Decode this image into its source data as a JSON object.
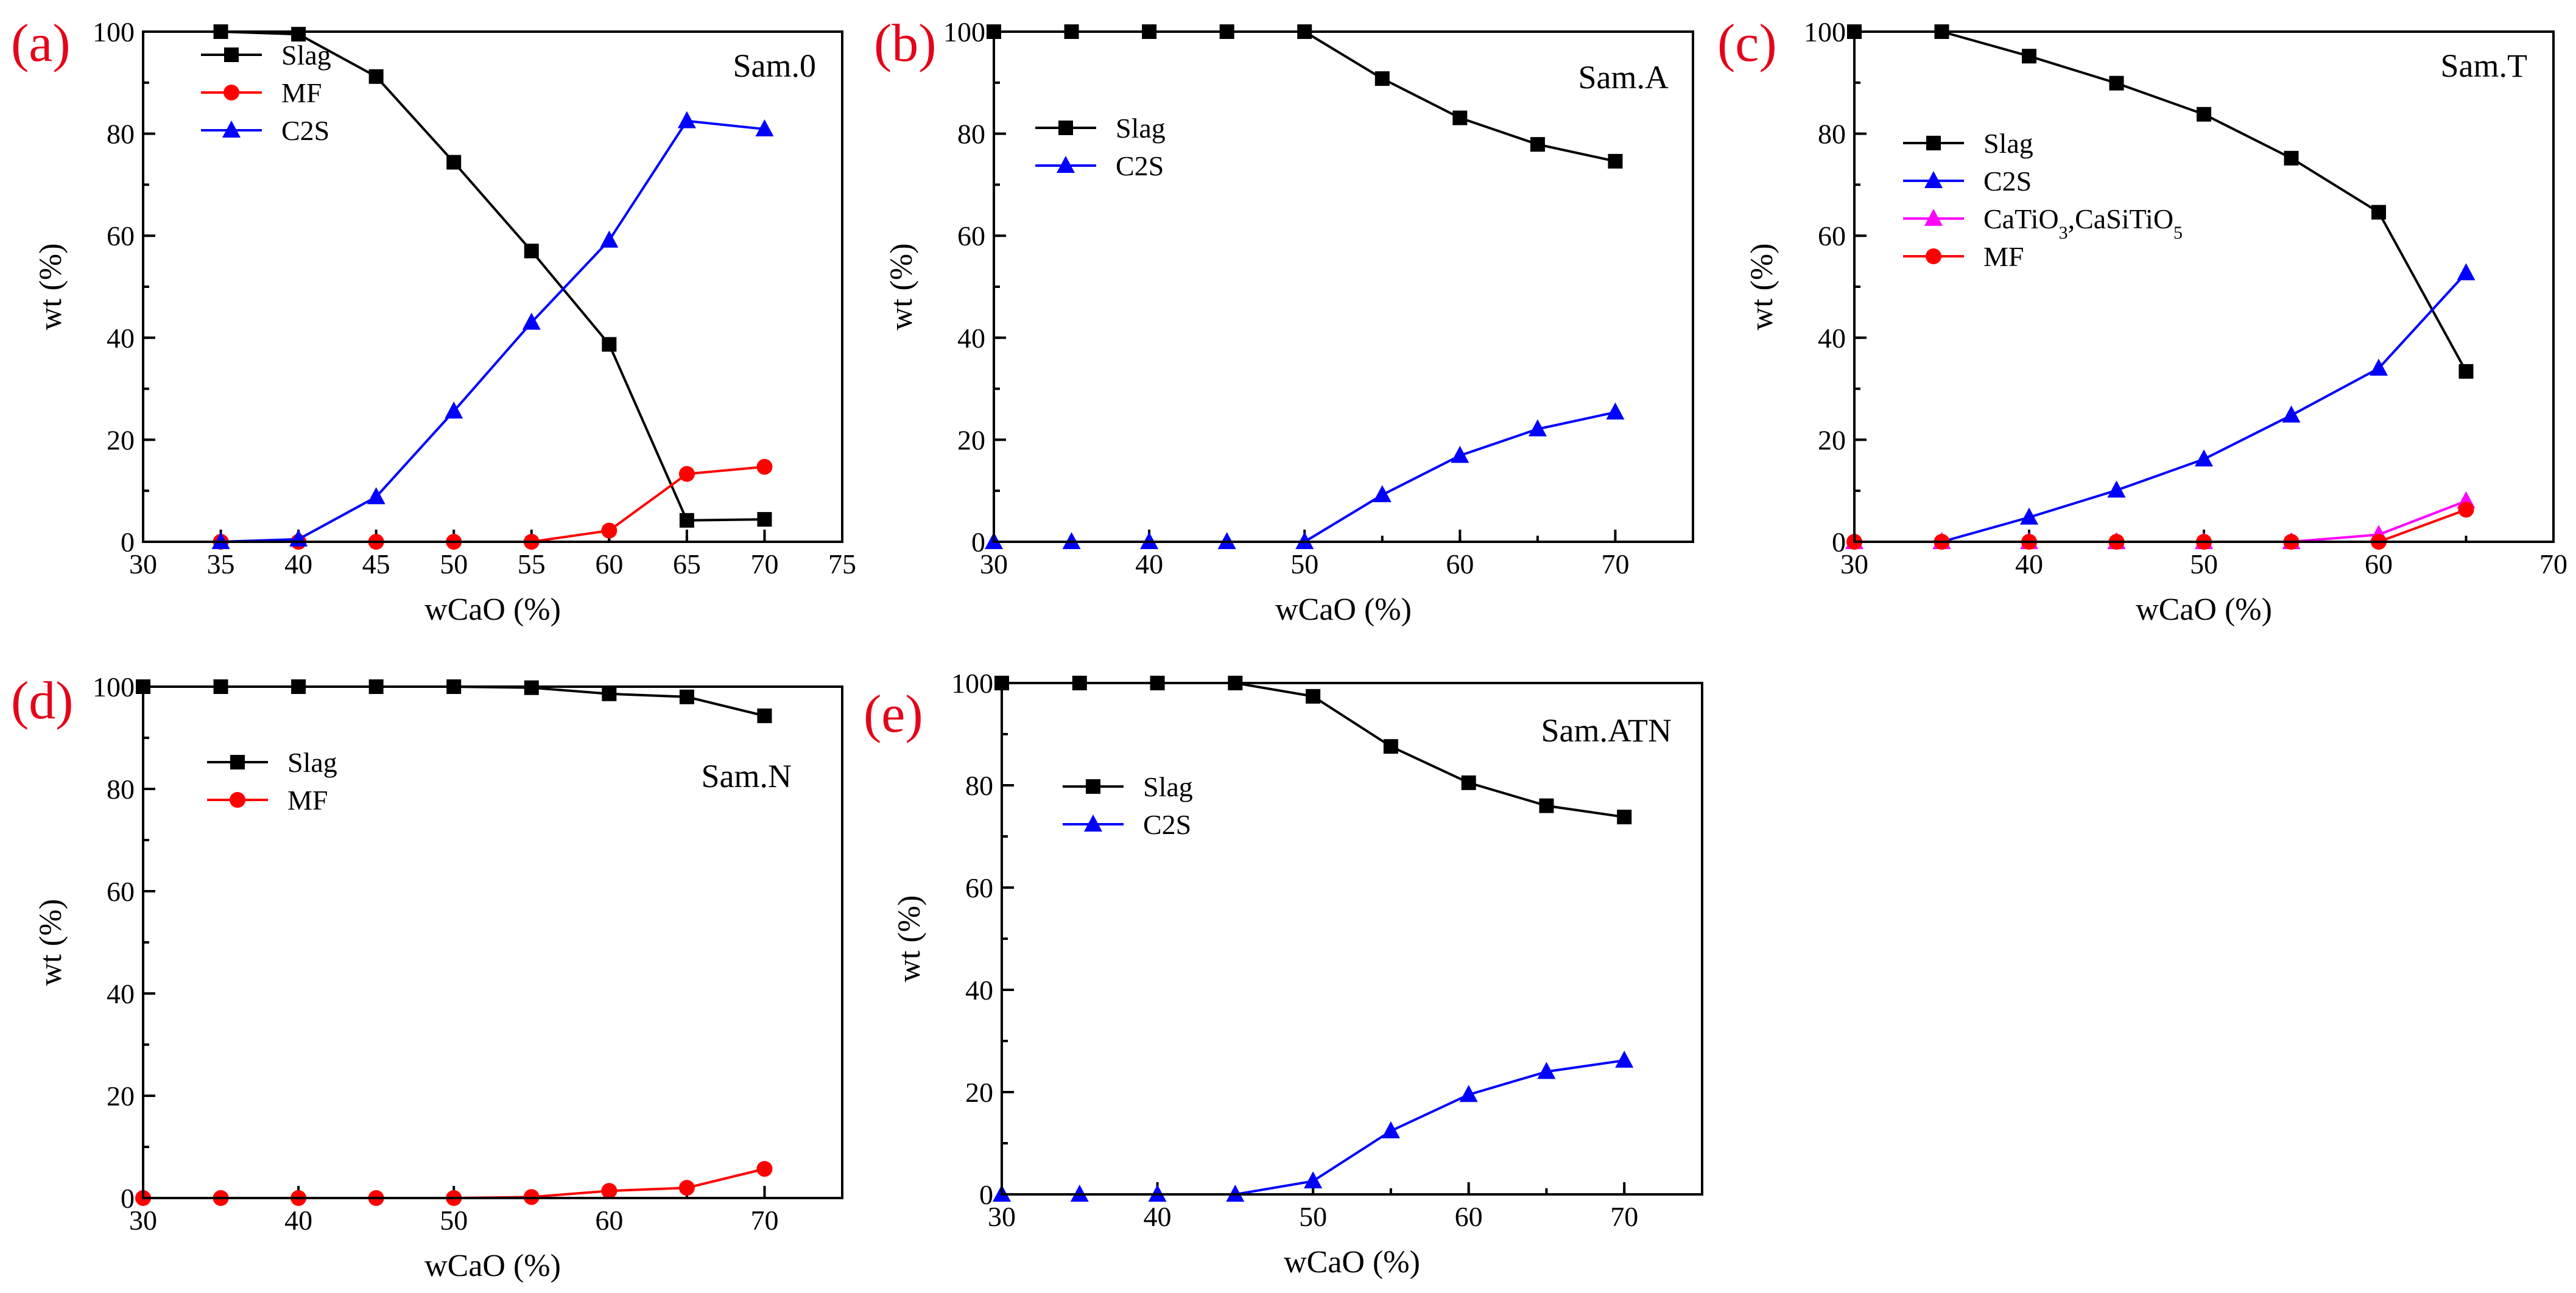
{
  "chart_data": [
    {
      "type": "line",
      "panel_label": "(a)",
      "sample": "Sam.0",
      "xlabel": "wCaO (%)",
      "ylabel": "wt (%)",
      "xlim": [
        30,
        75
      ],
      "ylim": [
        0,
        100
      ],
      "xticks": [
        "30",
        "35",
        "40",
        "45",
        "50",
        "55",
        "60",
        "65",
        "70",
        "75"
      ],
      "yticks": [
        "0",
        "20",
        "40",
        "60",
        "80",
        "100"
      ],
      "legend_position": "upper-left",
      "series": [
        {
          "name": "Slag",
          "color": "#000000",
          "marker": "square",
          "x": [
            35,
            40,
            45,
            50,
            55,
            60,
            65,
            70
          ],
          "values": [
            100,
            99.5,
            91.2,
            74.4,
            57,
            38.7,
            4.2,
            4.4
          ]
        },
        {
          "name": "MF",
          "color": "#ff0000",
          "marker": "circle",
          "x": [
            35,
            40,
            45,
            50,
            55,
            60,
            65,
            70
          ],
          "values": [
            0,
            0,
            0,
            0,
            0,
            2.2,
            13.3,
            14.7
          ]
        },
        {
          "name": "C2S",
          "color": "#0000ff",
          "marker": "triangle",
          "x": [
            35,
            40,
            45,
            50,
            55,
            60,
            65,
            70
          ],
          "values": [
            0,
            0.5,
            8.8,
            25.6,
            43,
            59.1,
            82.5,
            80.9
          ]
        }
      ]
    },
    {
      "type": "line",
      "panel_label": "(b)",
      "sample": "Sam.A",
      "xlabel": "wCaO (%)",
      "ylabel": "wt (%)",
      "xlim": [
        30,
        75
      ],
      "ylim": [
        0,
        100
      ],
      "xticks": [
        "30",
        "40",
        "50",
        "60",
        "70"
      ],
      "yticks": [
        "0",
        "20",
        "40",
        "60",
        "80",
        "100"
      ],
      "legend_position": "upper-left",
      "series": [
        {
          "name": "Slag",
          "color": "#000000",
          "marker": "square",
          "x": [
            30,
            35,
            40,
            45,
            50,
            55,
            60,
            65,
            70
          ],
          "values": [
            100,
            100,
            100,
            100,
            100,
            90.8,
            83.1,
            77.9,
            74.6
          ]
        },
        {
          "name": "C2S",
          "color": "#0000ff",
          "marker": "triangle",
          "x": [
            30,
            35,
            40,
            45,
            50,
            55,
            60,
            65,
            70
          ],
          "values": [
            0,
            0,
            0,
            0,
            0,
            9.2,
            16.9,
            22.1,
            25.4
          ]
        }
      ]
    },
    {
      "type": "line",
      "panel_label": "(c)",
      "sample": "Sam.T",
      "xlabel": "wCaO (%)",
      "ylabel": "wt (%)",
      "xlim": [
        30,
        70
      ],
      "ylim": [
        0,
        100
      ],
      "xticks": [
        "30",
        "40",
        "50",
        "60",
        "70"
      ],
      "yticks": [
        "0",
        "20",
        "40",
        "60",
        "80",
        "100"
      ],
      "legend_position": "upper-left",
      "series": [
        {
          "name": "Slag",
          "color": "#000000",
          "marker": "square",
          "x": [
            30,
            35,
            40,
            45,
            50,
            55,
            60,
            65
          ],
          "values": [
            100,
            100,
            95.2,
            89.9,
            83.8,
            75.2,
            64.6,
            33.4
          ]
        },
        {
          "name": "C2S",
          "color": "#0000ff",
          "marker": "triangle",
          "x": [
            35,
            40,
            45,
            50,
            55,
            60,
            65
          ],
          "values": [
            0,
            4.8,
            10.1,
            16.2,
            24.8,
            34,
            52.7
          ]
        },
        {
          "name": "CaTiO3,CaSiTiO5",
          "color": "#ff00ff",
          "marker": "triangle",
          "legend_parts": [
            "CaTiO",
            "3",
            ",CaSiTiO",
            "5"
          ],
          "x": [
            30,
            35,
            40,
            45,
            50,
            55,
            60,
            65
          ],
          "values": [
            0,
            0,
            0,
            0,
            0,
            0,
            1.4,
            8
          ]
        },
        {
          "name": "MF",
          "color": "#ff0000",
          "marker": "circle",
          "x": [
            30,
            35,
            40,
            45,
            50,
            55,
            60,
            65
          ],
          "values": [
            0,
            0,
            0,
            0,
            0,
            0,
            0,
            6.3
          ]
        }
      ]
    },
    {
      "type": "line",
      "panel_label": "(d)",
      "sample": "Sam.N",
      "xlabel": "wCaO (%)",
      "ylabel": "wt (%)",
      "xlim": [
        30,
        75
      ],
      "ylim": [
        0,
        100
      ],
      "xticks": [
        "30",
        "40",
        "50",
        "60",
        "70"
      ],
      "yticks": [
        "0",
        "20",
        "40",
        "60",
        "80",
        "100"
      ],
      "legend_position": "upper-left",
      "series": [
        {
          "name": "Slag",
          "color": "#000000",
          "marker": "square",
          "x": [
            30,
            35,
            40,
            45,
            50,
            55,
            60,
            65,
            70
          ],
          "values": [
            100,
            100,
            100,
            100,
            100,
            99.8,
            98.6,
            98,
            94.3
          ]
        },
        {
          "name": "MF",
          "color": "#ff0000",
          "marker": "circle",
          "x": [
            30,
            35,
            40,
            45,
            50,
            55,
            60,
            65,
            70
          ],
          "values": [
            0,
            0,
            0,
            0,
            0,
            0.2,
            1.4,
            2,
            5.7
          ]
        }
      ]
    },
    {
      "type": "line",
      "panel_label": "(e)",
      "sample": "Sam.ATN",
      "xlabel": "wCaO (%)",
      "ylabel": "wt (%)",
      "xlim": [
        30,
        75
      ],
      "ylim": [
        0,
        100
      ],
      "xticks": [
        "30",
        "40",
        "50",
        "60",
        "70"
      ],
      "yticks": [
        "0",
        "20",
        "40",
        "60",
        "80",
        "100"
      ],
      "legend_position": "upper-left",
      "series": [
        {
          "name": "Slag",
          "color": "#000000",
          "marker": "square",
          "x": [
            30,
            35,
            40,
            45,
            50,
            55,
            60,
            65,
            70
          ],
          "values": [
            100,
            100,
            100,
            100,
            97.4,
            87.6,
            80.5,
            76,
            73.8
          ]
        },
        {
          "name": "C2S",
          "color": "#0000ff",
          "marker": "triangle",
          "x": [
            30,
            35,
            40,
            45,
            50,
            55,
            60,
            65,
            70
          ],
          "values": [
            0,
            0,
            0,
            0,
            2.6,
            12.4,
            19.5,
            24,
            26.2
          ]
        }
      ]
    }
  ]
}
